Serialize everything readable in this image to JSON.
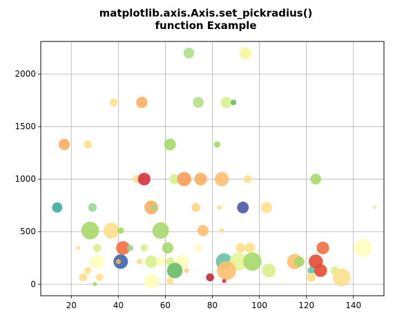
{
  "chart_data": {
    "type": "scatter",
    "title_lines": [
      "matplotlib.axis.Axis.set_pickradius()",
      "function Example"
    ],
    "xlabel": "",
    "ylabel": "",
    "xlim": [
      7,
      153
    ],
    "ylim": [
      -110,
      2310
    ],
    "x_ticks": [
      20,
      40,
      60,
      80,
      100,
      120,
      140
    ],
    "y_ticks": [
      0,
      500,
      1000,
      1500,
      2000
    ],
    "grid": true,
    "points": [
      {
        "x": 70,
        "y": 2200,
        "size": 55,
        "color": "#b2df8a"
      },
      {
        "x": 94,
        "y": 2200,
        "size": 70,
        "color": "#f7f7a0"
      },
      {
        "x": 38,
        "y": 1730,
        "size": 30,
        "color": "#fee08b"
      },
      {
        "x": 50,
        "y": 1730,
        "size": 60,
        "color": "#fdae61"
      },
      {
        "x": 74,
        "y": 1730,
        "size": 55,
        "color": "#b2df8a"
      },
      {
        "x": 86,
        "y": 1730,
        "size": 60,
        "color": "#d9ef8b"
      },
      {
        "x": 89,
        "y": 1730,
        "size": 15,
        "color": "#66bd63"
      },
      {
        "x": 17,
        "y": 1330,
        "size": 60,
        "color": "#fdae61"
      },
      {
        "x": 27,
        "y": 1330,
        "size": 30,
        "color": "#fee08b"
      },
      {
        "x": 62,
        "y": 1330,
        "size": 65,
        "color": "#a6d96a"
      },
      {
        "x": 82,
        "y": 1330,
        "size": 20,
        "color": "#a6d96a"
      },
      {
        "x": 48,
        "y": 1000,
        "size": 35,
        "color": "#fee08b"
      },
      {
        "x": 51,
        "y": 1000,
        "size": 75,
        "color": "#d7303f"
      },
      {
        "x": 64,
        "y": 1000,
        "size": 50,
        "color": "#d9ef8b"
      },
      {
        "x": 68,
        "y": 1000,
        "size": 95,
        "color": "#f99b58"
      },
      {
        "x": 75,
        "y": 1000,
        "size": 75,
        "color": "#fdae61"
      },
      {
        "x": 84,
        "y": 1000,
        "size": 95,
        "color": "#fdbf6f"
      },
      {
        "x": 95,
        "y": 1000,
        "size": 30,
        "color": "#fee08b"
      },
      {
        "x": 124,
        "y": 1000,
        "size": 55,
        "color": "#a6d96a"
      },
      {
        "x": 14,
        "y": 730,
        "size": 50,
        "color": "#3fa9a0"
      },
      {
        "x": 29,
        "y": 730,
        "size": 35,
        "color": "#99d594"
      },
      {
        "x": 54,
        "y": 730,
        "size": 90,
        "color": "#fdae61"
      },
      {
        "x": 55,
        "y": 730,
        "size": 15,
        "color": "#99d594"
      },
      {
        "x": 73,
        "y": 730,
        "size": 35,
        "color": "#fdd37f"
      },
      {
        "x": 83,
        "y": 730,
        "size": 10,
        "color": "#fee08b"
      },
      {
        "x": 93,
        "y": 730,
        "size": 65,
        "color": "#4b57a7"
      },
      {
        "x": 103,
        "y": 730,
        "size": 55,
        "color": "#fee08b"
      },
      {
        "x": 149,
        "y": 730,
        "size": 5,
        "color": "#fee08b"
      },
      {
        "x": 28,
        "y": 510,
        "size": 150,
        "color": "#a6d96a"
      },
      {
        "x": 37,
        "y": 510,
        "size": 120,
        "color": "#fee08b"
      },
      {
        "x": 41,
        "y": 510,
        "size": 20,
        "color": "#a6d96a"
      },
      {
        "x": 58,
        "y": 510,
        "size": 130,
        "color": "#a6d96a"
      },
      {
        "x": 76,
        "y": 510,
        "size": 60,
        "color": "#fdbf6f"
      },
      {
        "x": 84,
        "y": 510,
        "size": 10,
        "color": "#fee08b"
      },
      {
        "x": 23,
        "y": 345,
        "size": 8,
        "color": "#fee08b"
      },
      {
        "x": 31,
        "y": 345,
        "size": 30,
        "color": "#d9ef8b"
      },
      {
        "x": 40,
        "y": 345,
        "size": 25,
        "color": "#ffffbf"
      },
      {
        "x": 42,
        "y": 345,
        "size": 90,
        "color": "#f46d43"
      },
      {
        "x": 45,
        "y": 345,
        "size": 20,
        "color": "#99d594"
      },
      {
        "x": 51,
        "y": 345,
        "size": 25,
        "color": "#d9ef8b"
      },
      {
        "x": 61,
        "y": 345,
        "size": 60,
        "color": "#a6d96a"
      },
      {
        "x": 74,
        "y": 345,
        "size": 25,
        "color": "#ffffbf"
      },
      {
        "x": 92,
        "y": 345,
        "size": 45,
        "color": "#fee08b"
      },
      {
        "x": 96,
        "y": 345,
        "size": 50,
        "color": "#fee08b"
      },
      {
        "x": 127,
        "y": 345,
        "size": 75,
        "color": "#f46d43"
      },
      {
        "x": 144,
        "y": 345,
        "size": 160,
        "color": "#ffffbf"
      },
      {
        "x": 27,
        "y": 130,
        "size": 25,
        "color": "#fee08b"
      },
      {
        "x": 31,
        "y": 215,
        "size": 100,
        "color": "#ffffbf"
      },
      {
        "x": 41,
        "y": 215,
        "size": 100,
        "color": "#3e64ad"
      },
      {
        "x": 40,
        "y": 215,
        "size": 12,
        "color": "#fdae61"
      },
      {
        "x": 49,
        "y": 215,
        "size": 15,
        "color": "#fee08b"
      },
      {
        "x": 54,
        "y": 215,
        "size": 70,
        "color": "#d9ef8b"
      },
      {
        "x": 58,
        "y": 215,
        "size": 40,
        "color": "#ffffbf"
      },
      {
        "x": 62,
        "y": 215,
        "size": 35,
        "color": "#d9ef8b"
      },
      {
        "x": 67,
        "y": 215,
        "size": 95,
        "color": "#ffffbf"
      },
      {
        "x": 85,
        "y": 215,
        "size": 130,
        "color": "#66c2a5"
      },
      {
        "x": 91,
        "y": 215,
        "size": 150,
        "color": "#e6f598"
      },
      {
        "x": 97,
        "y": 215,
        "size": 160,
        "color": "#a6d96a"
      },
      {
        "x": 115,
        "y": 215,
        "size": 110,
        "color": "#fdbf6f"
      },
      {
        "x": 117,
        "y": 215,
        "size": 50,
        "color": "#a6d96a"
      },
      {
        "x": 124,
        "y": 215,
        "size": 95,
        "color": "#e34a33"
      },
      {
        "x": 64,
        "y": 130,
        "size": 115,
        "color": "#66bd63"
      },
      {
        "x": 69,
        "y": 130,
        "size": 12,
        "color": "#fdd37f"
      },
      {
        "x": 86,
        "y": 130,
        "size": 170,
        "color": "#fdbf6f"
      },
      {
        "x": 104,
        "y": 130,
        "size": 90,
        "color": "#d9ef8b"
      },
      {
        "x": 122,
        "y": 130,
        "size": 25,
        "color": "#66c2a5"
      },
      {
        "x": 126,
        "y": 130,
        "size": 80,
        "color": "#e34a33"
      },
      {
        "x": 132,
        "y": 130,
        "size": 30,
        "color": "#d9ef8b"
      },
      {
        "x": 25,
        "y": 65,
        "size": 30,
        "color": "#fee08b"
      },
      {
        "x": 32,
        "y": 65,
        "size": 25,
        "color": "#fee08b"
      },
      {
        "x": 30,
        "y": 0,
        "size": 8,
        "color": "#a6d96a"
      },
      {
        "x": 54,
        "y": 30,
        "size": 110,
        "color": "#ffffbf"
      },
      {
        "x": 62,
        "y": 30,
        "size": 25,
        "color": "#fee08b"
      },
      {
        "x": 79,
        "y": 65,
        "size": 30,
        "color": "#c2283b"
      },
      {
        "x": 85,
        "y": 30,
        "size": 8,
        "color": "#d7303f"
      },
      {
        "x": 122,
        "y": 65,
        "size": 40,
        "color": "#fee08b"
      },
      {
        "x": 135,
        "y": 65,
        "size": 150,
        "color": "#fee08b"
      }
    ]
  }
}
